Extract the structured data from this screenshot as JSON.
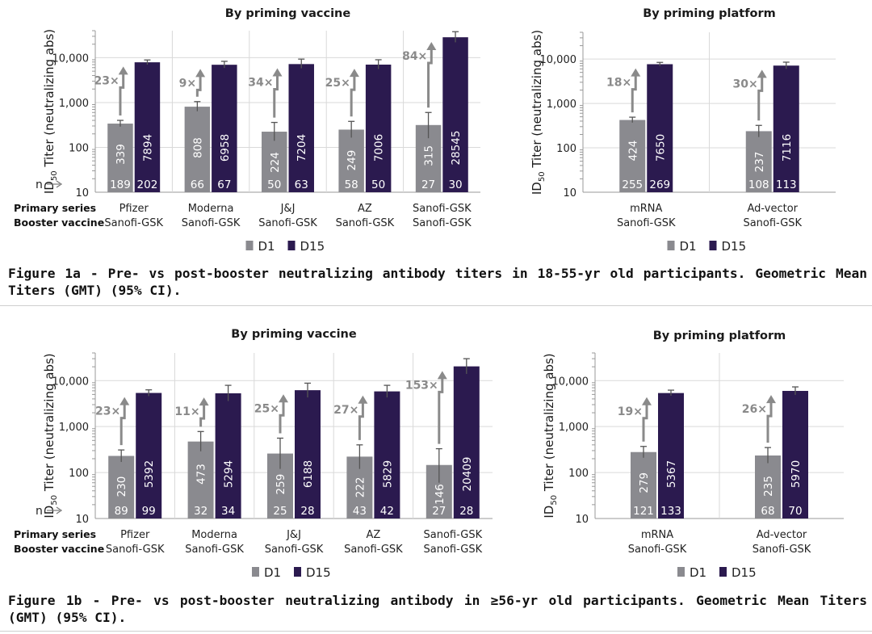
{
  "colors": {
    "d1": "#8a8a8f",
    "d15": "#2b1a4f",
    "arrow": "#8a8a8a",
    "grid": "#d9d9d9"
  },
  "common": {
    "ylabel_pre": "ID",
    "ylabel_sub": "50",
    "ylabel_post": " Titer (neutralizing abs)",
    "yticks": [
      "10",
      "100",
      "1,000",
      "10,000"
    ],
    "n_label": "n",
    "primary_label": "Primary series",
    "booster_label": "Booster vaccine",
    "legend": [
      "D1",
      "D15"
    ]
  },
  "captions": {
    "fig1a": "Figure 1a - Pre- vs post-booster neutralizing antibody titers in 18-55-yr old participants. Geometric Mean Titers (GMT) (95% CI).",
    "fig1b": "Figure 1b - Pre- vs post-booster neutralizing antibody in ≥56-yr old participants. Geometric Mean Titers (GMT) (95% CI)."
  },
  "chart_data": [
    {
      "type": "bar",
      "title": "By priming vaccine",
      "ylabel": "ID50 Titer (neutralizing abs)",
      "yscale": "log",
      "ylim": [
        10,
        40000
      ],
      "primary": [
        "Pfizer",
        "Moderna",
        "J&J",
        "AZ",
        "Sanofi-GSK"
      ],
      "booster": [
        "Sanofi-GSK",
        "Sanofi-GSK",
        "Sanofi-GSK",
        "Sanofi-GSK",
        "Sanofi-GSK"
      ],
      "series": [
        {
          "name": "D1",
          "values": [
            339,
            808,
            224,
            249,
            315
          ],
          "ci_low": [
            290,
            640,
            140,
            165,
            160
          ],
          "ci_high": [
            400,
            1050,
            360,
            380,
            600
          ],
          "n": [
            189,
            66,
            50,
            58,
            27
          ]
        },
        {
          "name": "D15",
          "values": [
            7894,
            6958,
            7204,
            7006,
            28545
          ],
          "ci_low": [
            7000,
            5900,
            5800,
            5600,
            22000
          ],
          "ci_high": [
            8900,
            8300,
            9300,
            9000,
            38000
          ],
          "n": [
            202,
            67,
            63,
            50,
            30
          ]
        }
      ],
      "fold": [
        "23×",
        "9×",
        "34×",
        "25×",
        "84×"
      ],
      "legend": "bottom"
    },
    {
      "type": "bar",
      "title": "By priming platform",
      "ylabel": "ID50 Titer (neutralizing abs)",
      "yscale": "log",
      "ylim": [
        10,
        40000
      ],
      "primary": [
        "mRNA",
        "Ad-vector"
      ],
      "booster": [
        "Sanofi-GSK",
        "Sanofi-GSK"
      ],
      "series": [
        {
          "name": "D1",
          "values": [
            424,
            237
          ],
          "ci_low": [
            370,
            175
          ],
          "ci_high": [
            490,
            320
          ],
          "n": [
            255,
            108
          ]
        },
        {
          "name": "D15",
          "values": [
            7650,
            7116
          ],
          "ci_low": [
            7000,
            6000
          ],
          "ci_high": [
            8400,
            8500
          ],
          "n": [
            269,
            113
          ]
        }
      ],
      "fold": [
        "18×",
        "30×"
      ],
      "legend": "bottom"
    },
    {
      "type": "bar",
      "title": "By priming vaccine",
      "ylabel": "ID50 Titer (neutralizing abs)",
      "yscale": "log",
      "ylim": [
        10,
        40000
      ],
      "primary": [
        "Pfizer",
        "Moderna",
        "J&J",
        "AZ",
        "Sanofi-GSK"
      ],
      "booster": [
        "Sanofi-GSK",
        "Sanofi-GSK",
        "Sanofi-GSK",
        "Sanofi-GSK",
        "Sanofi-GSK"
      ],
      "series": [
        {
          "name": "D1",
          "values": [
            230,
            473,
            259,
            222,
            146
          ],
          "ci_low": [
            170,
            290,
            120,
            120,
            60
          ],
          "ci_high": [
            310,
            780,
            560,
            400,
            330
          ],
          "n": [
            89,
            32,
            25,
            43,
            27
          ]
        },
        {
          "name": "D15",
          "values": [
            5392,
            5294,
            6188,
            5829,
            20409
          ],
          "ci_low": [
            4600,
            3600,
            4300,
            4300,
            14000
          ],
          "ci_high": [
            6300,
            7900,
            8800,
            7900,
            30000
          ],
          "n": [
            99,
            34,
            28,
            42,
            28
          ]
        }
      ],
      "fold": [
        "23×",
        "11×",
        "25×",
        "27×",
        "153×"
      ],
      "legend": "bottom"
    },
    {
      "type": "bar",
      "title": "By priming platform",
      "ylabel": "ID50 Titer (neutralizing abs)",
      "yscale": "log",
      "ylim": [
        10,
        40000
      ],
      "primary": [
        "mRNA",
        "Ad-vector"
      ],
      "booster": [
        "Sanofi-GSK",
        "Sanofi-GSK"
      ],
      "series": [
        {
          "name": "D1",
          "values": [
            279,
            235
          ],
          "ci_low": [
            210,
            160
          ],
          "ci_high": [
            370,
            350
          ],
          "n": [
            121,
            68
          ]
        },
        {
          "name": "D15",
          "values": [
            5367,
            5970
          ],
          "ci_low": [
            4700,
            4900
          ],
          "ci_high": [
            6200,
            7300
          ],
          "n": [
            133,
            70
          ]
        }
      ],
      "fold": [
        "19×",
        "26×"
      ],
      "legend": "bottom"
    }
  ]
}
